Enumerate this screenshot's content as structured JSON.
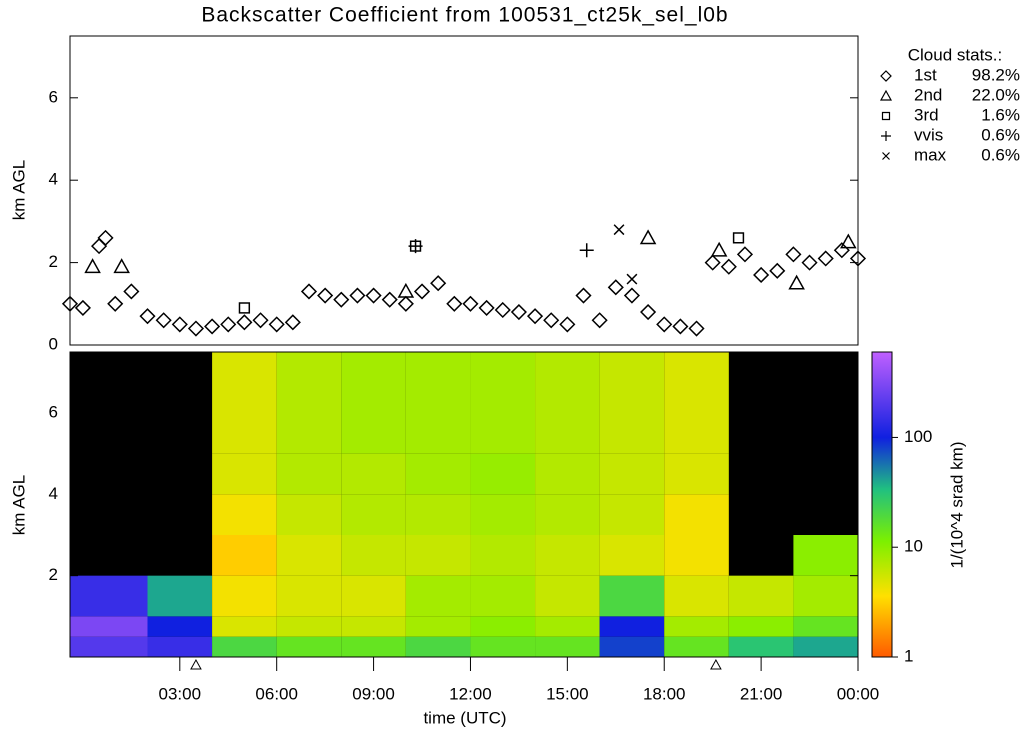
{
  "chart_data": [
    {
      "type": "scatter",
      "title": "Backscatter Coefficient from 100531_ct25k_sel_l0b",
      "ylabel": "km AGL",
      "xlim": [
        -0.4,
        24
      ],
      "ylim": [
        0,
        7.5
      ],
      "yticks": [
        0,
        2,
        4,
        6
      ],
      "legend_title": "Cloud stats.:",
      "series": [
        {
          "name": "1st",
          "label": "98.2%",
          "marker": "diamond",
          "x": [
            -0.4,
            0,
            0.5,
            0.7,
            1,
            1.5,
            2,
            2.5,
            3,
            3.5,
            4,
            4.5,
            5,
            5.5,
            6,
            6.5,
            7,
            7.5,
            8,
            8.5,
            9,
            9.5,
            10,
            10.5,
            11,
            11.5,
            12,
            12.5,
            13,
            13.5,
            14,
            14.5,
            15,
            15.5,
            16,
            16.5,
            17,
            17.5,
            18,
            18.5,
            19,
            19.5,
            20,
            20.5,
            21,
            21.5,
            22,
            22.5,
            23,
            23.5,
            24
          ],
          "values": [
            1.0,
            0.9,
            2.4,
            2.6,
            1.0,
            1.3,
            0.7,
            0.6,
            0.5,
            0.4,
            0.45,
            0.5,
            0.55,
            0.6,
            0.5,
            0.55,
            1.3,
            1.2,
            1.1,
            1.2,
            1.2,
            1.1,
            1.0,
            1.3,
            1.5,
            1.0,
            1.0,
            0.9,
            0.85,
            0.8,
            0.7,
            0.6,
            0.5,
            1.2,
            0.6,
            1.4,
            1.2,
            0.8,
            0.5,
            0.45,
            0.4,
            2.0,
            1.9,
            2.2,
            1.7,
            1.8,
            2.2,
            2.0,
            2.1,
            2.3,
            2.1
          ]
        },
        {
          "name": "2nd",
          "label": "22.0%",
          "marker": "triangle",
          "x": [
            0.3,
            1.2,
            10,
            17.5,
            19.7,
            22.1,
            23.7
          ],
          "values": [
            1.9,
            1.9,
            1.3,
            2.6,
            2.3,
            1.5,
            2.5
          ]
        },
        {
          "name": "3rd",
          "label": "1.6%",
          "marker": "square",
          "x": [
            5,
            10.3,
            20.3
          ],
          "values": [
            0.9,
            2.4,
            2.6
          ]
        },
        {
          "name": "vvis",
          "label": "0.6%",
          "marker": "plus",
          "x": [
            10.3,
            15.6
          ],
          "values": [
            2.4,
            2.3
          ]
        },
        {
          "name": "max",
          "label": "0.6%",
          "marker": "cross",
          "x": [
            16.6,
            17
          ],
          "values": [
            2.8,
            1.6
          ]
        }
      ]
    },
    {
      "type": "heatmap",
      "ylabel": "km AGL",
      "xlabel": "time (UTC)",
      "xlim": [
        -0.4,
        24
      ],
      "ylim": [
        0,
        7.5
      ],
      "yticks": [
        2,
        4,
        6
      ],
      "xticks": [
        {
          "value": 3,
          "label": "03:00"
        },
        {
          "value": 6,
          "label": "06:00"
        },
        {
          "value": 9,
          "label": "09:00"
        },
        {
          "value": 12,
          "label": "12:00"
        },
        {
          "value": 15,
          "label": "15:00"
        },
        {
          "value": 18,
          "label": "18:00"
        },
        {
          "value": 21,
          "label": "21:00"
        },
        {
          "value": 24,
          "label": "00:00"
        }
      ],
      "x_edges": [
        -0.4,
        2,
        4,
        6,
        8,
        10,
        12,
        14,
        16,
        18,
        20,
        22,
        24
      ],
      "y_edges": [
        0,
        0.5,
        1,
        2,
        3,
        4,
        5,
        6,
        7.5
      ],
      "z": [
        [
          200,
          150,
          20,
          15,
          15,
          20,
          15,
          15,
          80,
          15,
          30,
          40
        ],
        [
          300,
          100,
          5,
          6,
          6,
          8,
          10,
          8,
          100,
          8,
          10,
          15
        ],
        [
          150,
          40,
          4,
          5,
          5,
          8,
          8,
          6,
          20,
          5,
          6,
          8
        ],
        [
          null,
          null,
          3,
          5,
          6,
          6,
          7,
          6,
          5,
          4,
          null,
          10
        ],
        [
          null,
          null,
          4,
          6,
          7,
          7,
          8,
          7,
          6,
          4,
          null,
          null
        ],
        [
          null,
          null,
          5,
          7,
          7,
          8,
          9,
          7,
          6,
          5,
          null,
          null
        ],
        [
          null,
          null,
          5,
          7,
          8,
          8,
          8,
          7,
          6,
          5,
          null,
          null
        ],
        [
          null,
          null,
          5,
          7,
          8,
          8,
          8,
          7,
          6,
          5,
          null,
          null
        ]
      ],
      "colorbar_label": "1/(10^4 srad km)",
      "colorbar_lim": [
        1,
        600
      ],
      "colorbar_ticks": [
        1,
        10,
        100
      ],
      "markers_x": [
        3.5,
        19.6
      ]
    }
  ]
}
